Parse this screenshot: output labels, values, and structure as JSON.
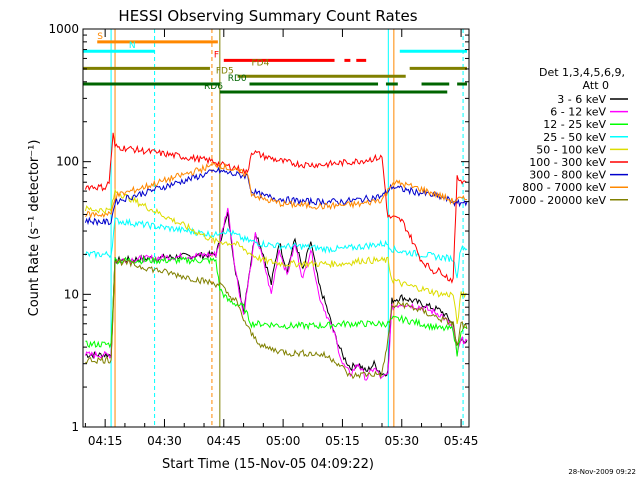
{
  "chart_data": {
    "type": "line",
    "title": "HESSI Observing Summary Count Rates",
    "xlabel": "Start Time (15-Nov-05 04:09:22)",
    "ylabel": "Count Rate (s⁻¹ detector⁻¹)",
    "yscale": "log",
    "ylim": [
      1,
      1000
    ],
    "xlim_minutes_after_0400": [
      9.4,
      107.0
    ],
    "x_ticks": [
      {
        "m": 15,
        "label": "04:15"
      },
      {
        "m": 30,
        "label": "04:30"
      },
      {
        "m": 45,
        "label": "04:45"
      },
      {
        "m": 60,
        "label": "05:00"
      },
      {
        "m": 75,
        "label": "05:15"
      },
      {
        "m": 90,
        "label": "05:30"
      },
      {
        "m": 105,
        "label": "05:45"
      }
    ],
    "y_ticks": [
      {
        "v": 1,
        "label": "1"
      },
      {
        "v": 10,
        "label": "10"
      },
      {
        "v": 100,
        "label": "100"
      },
      {
        "v": 1000,
        "label": "1000"
      }
    ],
    "legend_title": [
      "Det 1,3,4,5,6,9,",
      "Att 0"
    ],
    "legend_placement": "right",
    "series": [
      {
        "name": "3 - 6 keV",
        "color": "#000000",
        "points": [
          [
            10.0,
            3.5
          ],
          [
            16.5,
            3.5
          ],
          [
            17.5,
            18.0
          ],
          [
            43.0,
            20.0
          ],
          [
            44.0,
            25.0
          ],
          [
            46.0,
            40.0
          ],
          [
            48.0,
            15.0
          ],
          [
            50.0,
            7.5
          ],
          [
            53.0,
            30.0
          ],
          [
            55.0,
            20.0
          ],
          [
            57.0,
            12.0
          ],
          [
            59.0,
            25.0
          ],
          [
            61.0,
            15.0
          ],
          [
            63.0,
            26.0
          ],
          [
            65.0,
            15.0
          ],
          [
            67.0,
            25.0
          ],
          [
            69.0,
            12.0
          ],
          [
            71.0,
            8.0
          ],
          [
            73.0,
            5.0
          ],
          [
            75.0,
            3.5
          ],
          [
            77.0,
            2.8
          ],
          [
            79.0,
            3.0
          ],
          [
            81.0,
            2.6
          ],
          [
            83.0,
            3.0
          ],
          [
            85.0,
            2.5
          ],
          [
            86.5,
            2.6
          ],
          [
            87.5,
            9.0
          ],
          [
            90.0,
            9.5
          ],
          [
            95.0,
            8.5
          ],
          [
            100.0,
            7.5
          ],
          [
            103.0,
            6.0
          ],
          [
            104.0,
            4.0
          ],
          [
            105.0,
            4.5
          ],
          [
            106.5,
            4.5
          ]
        ]
      },
      {
        "name": "6 - 12 keV",
        "color": "#ff00ff",
        "points": [
          [
            10.0,
            3.5
          ],
          [
            16.5,
            3.5
          ],
          [
            17.5,
            18.0
          ],
          [
            43.0,
            20.0
          ],
          [
            44.0,
            25.0
          ],
          [
            46.0,
            45.0
          ],
          [
            48.0,
            15.0
          ],
          [
            50.0,
            7.0
          ],
          [
            53.0,
            28.0
          ],
          [
            55.0,
            18.0
          ],
          [
            57.0,
            10.0
          ],
          [
            59.0,
            22.0
          ],
          [
            61.0,
            14.0
          ],
          [
            63.0,
            24.0
          ],
          [
            65.0,
            13.0
          ],
          [
            67.0,
            22.0
          ],
          [
            69.0,
            10.0
          ],
          [
            71.0,
            7.0
          ],
          [
            73.0,
            5.0
          ],
          [
            75.0,
            3.0
          ],
          [
            77.0,
            2.5
          ],
          [
            79.0,
            3.0
          ],
          [
            81.0,
            2.3
          ],
          [
            83.0,
            2.8
          ],
          [
            85.0,
            2.3
          ],
          [
            86.5,
            2.5
          ],
          [
            87.5,
            8.0
          ],
          [
            90.0,
            8.5
          ],
          [
            95.0,
            8.0
          ],
          [
            100.0,
            7.0
          ],
          [
            103.0,
            5.5
          ],
          [
            104.0,
            3.5
          ],
          [
            105.0,
            4.5
          ],
          [
            106.5,
            4.5
          ]
        ]
      },
      {
        "name": "12 - 25 keV",
        "color": "#00ff00",
        "points": [
          [
            10.0,
            4.2
          ],
          [
            16.5,
            4.2
          ],
          [
            17.5,
            18.0
          ],
          [
            43.0,
            18.0
          ],
          [
            44.0,
            11.0
          ],
          [
            46.0,
            9.0
          ],
          [
            48.0,
            8.5
          ],
          [
            50.0,
            8.0
          ],
          [
            52.0,
            6.0
          ],
          [
            55.0,
            6.0
          ],
          [
            60.0,
            5.8
          ],
          [
            65.0,
            5.8
          ],
          [
            70.0,
            5.8
          ],
          [
            75.0,
            6.0
          ],
          [
            80.0,
            6.0
          ],
          [
            86.5,
            6.0
          ],
          [
            87.5,
            6.5
          ],
          [
            90.0,
            6.5
          ],
          [
            95.0,
            6.0
          ],
          [
            100.0,
            5.5
          ],
          [
            103.0,
            5.5
          ],
          [
            104.0,
            3.5
          ],
          [
            105.0,
            5.5
          ],
          [
            106.5,
            5.5
          ]
        ]
      },
      {
        "name": "25 - 50 keV",
        "color": "#00ffff",
        "points": [
          [
            10.0,
            20.0
          ],
          [
            15.0,
            20.0
          ],
          [
            16.5,
            20.0
          ],
          [
            17.5,
            36.0
          ],
          [
            43.0,
            28.0
          ],
          [
            44.0,
            30.0
          ],
          [
            46.0,
            30.0
          ],
          [
            48.0,
            28.0
          ],
          [
            50.0,
            26.0
          ],
          [
            52.0,
            25.0
          ],
          [
            55.0,
            24.0
          ],
          [
            60.0,
            23.0
          ],
          [
            65.0,
            23.0
          ],
          [
            70.0,
            22.0
          ],
          [
            75.0,
            22.0
          ],
          [
            80.0,
            23.0
          ],
          [
            85.0,
            24.0
          ],
          [
            86.5,
            24.0
          ],
          [
            87.5,
            22.0
          ],
          [
            90.0,
            21.0
          ],
          [
            95.0,
            20.0
          ],
          [
            100.0,
            19.0
          ],
          [
            103.0,
            18.5
          ],
          [
            104.0,
            14.0
          ],
          [
            105.0,
            23.0
          ],
          [
            106.5,
            22.0
          ]
        ]
      },
      {
        "name": "50 - 100 keV",
        "color": "#dddd00",
        "points": [
          [
            10.0,
            44.0
          ],
          [
            15.0,
            43.0
          ],
          [
            16.5,
            43.0
          ],
          [
            17.5,
            60.0
          ],
          [
            43.0,
            25.0
          ],
          [
            44.0,
            25.0
          ],
          [
            48.0,
            24.0
          ],
          [
            50.0,
            22.0
          ],
          [
            52.0,
            20.0
          ],
          [
            55.0,
            18.0
          ],
          [
            60.0,
            17.0
          ],
          [
            65.0,
            17.0
          ],
          [
            70.0,
            17.0
          ],
          [
            75.0,
            17.0
          ],
          [
            80.0,
            18.0
          ],
          [
            85.0,
            18.0
          ],
          [
            86.5,
            18.0
          ],
          [
            87.5,
            13.0
          ],
          [
            90.0,
            12.0
          ],
          [
            95.0,
            11.0
          ],
          [
            100.0,
            10.0
          ],
          [
            103.0,
            10.0
          ],
          [
            104.0,
            6.0
          ],
          [
            105.0,
            10.0
          ],
          [
            106.5,
            10.0
          ]
        ]
      },
      {
        "name": "100 - 300 keV",
        "color": "#ff0000",
        "points": [
          [
            10.0,
            65.0
          ],
          [
            15.0,
            64.0
          ],
          [
            16.0,
            70.0
          ],
          [
            17.0,
            160.0
          ],
          [
            17.5,
            130.0
          ],
          [
            43.0,
            100.0
          ],
          [
            44.0,
            95.0
          ],
          [
            48.0,
            90.0
          ],
          [
            51.0,
            82.0
          ],
          [
            52.0,
            120.0
          ],
          [
            55.0,
            110.0
          ],
          [
            60.0,
            100.0
          ],
          [
            65.0,
            95.0
          ],
          [
            70.0,
            95.0
          ],
          [
            75.0,
            98.0
          ],
          [
            80.0,
            102.0
          ],
          [
            85.0,
            108.0
          ],
          [
            86.5,
            38.0
          ],
          [
            87.5,
            38.0
          ],
          [
            90.0,
            36.0
          ],
          [
            92.0,
            28.0
          ],
          [
            95.0,
            18.0
          ],
          [
            98.0,
            15.0
          ],
          [
            100.0,
            15.0
          ],
          [
            102.0,
            13.0
          ],
          [
            103.0,
            13.0
          ],
          [
            104.0,
            75.0
          ],
          [
            106.5,
            70.0
          ]
        ]
      },
      {
        "name": "300 - 800 keV",
        "color": "#0000cc",
        "points": [
          [
            10.0,
            36.0
          ],
          [
            15.0,
            35.0
          ],
          [
            16.5,
            35.0
          ],
          [
            17.5,
            50.0
          ],
          [
            43.0,
            85.0
          ],
          [
            44.0,
            85.0
          ],
          [
            48.0,
            80.0
          ],
          [
            51.0,
            78.0
          ],
          [
            52.0,
            60.0
          ],
          [
            55.0,
            55.0
          ],
          [
            60.0,
            52.0
          ],
          [
            65.0,
            50.0
          ],
          [
            70.0,
            50.0
          ],
          [
            75.0,
            50.0
          ],
          [
            80.0,
            52.0
          ],
          [
            85.0,
            55.0
          ],
          [
            86.5,
            60.0
          ],
          [
            87.5,
            65.0
          ],
          [
            90.0,
            62.0
          ],
          [
            95.0,
            58.0
          ],
          [
            100.0,
            54.0
          ],
          [
            103.0,
            50.0
          ],
          [
            104.0,
            48.0
          ],
          [
            106.5,
            50.0
          ]
        ]
      },
      {
        "name": "800 - 7000 keV",
        "color": "#ff8800",
        "points": [
          [
            10.0,
            40.0
          ],
          [
            15.0,
            40.0
          ],
          [
            16.5,
            40.0
          ],
          [
            17.5,
            55.0
          ],
          [
            43.0,
            95.0
          ],
          [
            44.0,
            95.0
          ],
          [
            48.0,
            85.0
          ],
          [
            51.0,
            80.0
          ],
          [
            52.0,
            58.0
          ],
          [
            55.0,
            52.0
          ],
          [
            60.0,
            48.0
          ],
          [
            65.0,
            47.0
          ],
          [
            70.0,
            46.0
          ],
          [
            75.0,
            47.0
          ],
          [
            80.0,
            48.0
          ],
          [
            85.0,
            52.0
          ],
          [
            86.5,
            60.0
          ],
          [
            87.5,
            70.0
          ],
          [
            90.0,
            68.0
          ],
          [
            95.0,
            62.0
          ],
          [
            100.0,
            55.0
          ],
          [
            103.0,
            50.0
          ],
          [
            104.0,
            52.0
          ],
          [
            106.5,
            52.0
          ]
        ]
      },
      {
        "name": "7000 - 20000 keV",
        "color": "#808000",
        "points": [
          [
            10.0,
            3.2
          ],
          [
            16.5,
            3.2
          ],
          [
            17.5,
            18.0
          ],
          [
            43.0,
            12.0
          ],
          [
            44.0,
            12.0
          ],
          [
            46.0,
            10.0
          ],
          [
            48.0,
            9.0
          ],
          [
            50.0,
            6.5
          ],
          [
            52.0,
            5.0
          ],
          [
            55.0,
            4.0
          ],
          [
            58.0,
            3.8
          ],
          [
            62.0,
            3.6
          ],
          [
            66.0,
            3.6
          ],
          [
            70.0,
            3.5
          ],
          [
            73.0,
            3.2
          ],
          [
            75.0,
            2.8
          ],
          [
            77.0,
            2.4
          ],
          [
            80.0,
            2.5
          ],
          [
            83.0,
            2.5
          ],
          [
            85.0,
            2.5
          ],
          [
            86.5,
            4.5
          ],
          [
            87.5,
            8.0
          ],
          [
            90.0,
            8.5
          ],
          [
            95.0,
            7.5
          ],
          [
            100.0,
            6.5
          ],
          [
            103.0,
            6.0
          ],
          [
            104.0,
            4.0
          ],
          [
            105.0,
            6.0
          ],
          [
            106.5,
            5.5
          ]
        ]
      }
    ],
    "flags": [
      {
        "label": "S",
        "color": "#ff8800",
        "y": 800,
        "label_m": 13.0,
        "segments": [
          [
            13.0,
            43.5
          ]
        ]
      },
      {
        "label": "N",
        "color": "#00ffff",
        "y": 680,
        "label_m": 21.0,
        "segments": [
          [
            9.4,
            27.5
          ],
          [
            89.5,
            106.5
          ]
        ]
      },
      {
        "label": "F",
        "color": "#ff0000",
        "y": 580,
        "label_m": 42.5,
        "segments": [
          [
            45.0,
            73.0
          ],
          [
            75.5,
            77.0
          ],
          [
            78.5,
            81.0
          ]
        ]
      },
      {
        "label": "FD4",
        "color": "#808000",
        "y": 505,
        "label_m": 52.0,
        "segments": [
          [
            9.4,
            41.5
          ],
          [
            92.0,
            106.5
          ]
        ]
      },
      {
        "label": "FD5",
        "color": "#808000",
        "y": 440,
        "label_m": 43.0,
        "segments": [
          [
            48.5,
            91.0
          ]
        ]
      },
      {
        "label": "RD0",
        "color": "#006400",
        "y": 385,
        "label_m": 46.0,
        "segments": [
          [
            9.4,
            44.0
          ],
          [
            51.5,
            84.0
          ],
          [
            86.0,
            89.0
          ],
          [
            95.0,
            102.0
          ],
          [
            104.0,
            106.5
          ]
        ]
      },
      {
        "label": "RD6",
        "color": "#006400",
        "y": 335,
        "label_m": 40.0,
        "segments": [
          [
            44.0,
            101.5
          ]
        ]
      }
    ],
    "vlines": [
      {
        "m": 17.5,
        "color": "#ff8800",
        "dashed": false
      },
      {
        "m": 16.5,
        "color": "#00ffff",
        "dashed": false
      },
      {
        "m": 27.5,
        "color": "#00ffff",
        "dashed": true
      },
      {
        "m": 42.0,
        "color": "#ff8800",
        "dashed": true
      },
      {
        "m": 44.0,
        "color": "#808000",
        "dashed": false
      },
      {
        "m": 86.6,
        "color": "#00ffff",
        "dashed": false
      },
      {
        "m": 88.0,
        "color": "#ff8800",
        "dashed": false
      },
      {
        "m": 105.5,
        "color": "#00ffff",
        "dashed": true
      }
    ]
  },
  "footer_timestamp": "28-Nov-2009 09:22"
}
